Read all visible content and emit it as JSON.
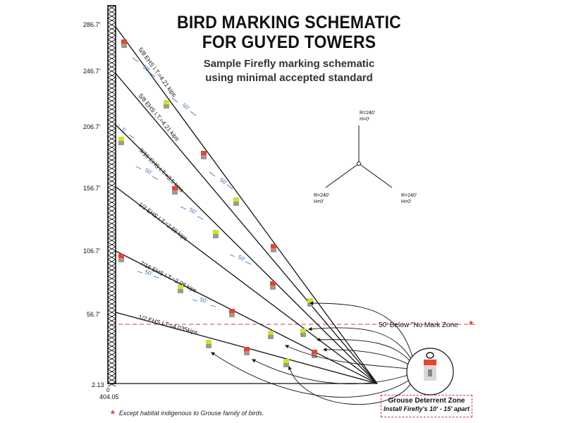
{
  "title_line1": "BIRD MARKING SCHEMATIC",
  "title_line2": "FOR GUYED TOWERS",
  "subtitle_line1": "Sample Firefly marking schematic",
  "subtitle_line2": "using minimal accepted standard",
  "height_labels": [
    "286.7'",
    "246.7'",
    "206.7'",
    "156.7'",
    "106.7'",
    "56.7'",
    "2.13"
  ],
  "base_label": "404.05",
  "base_marker": "0",
  "guy_wires": [
    {
      "label": "5/8 EHS  I.T.=4.21 kips"
    },
    {
      "label": "5/8 EHS  I.T.=4.21 kips"
    },
    {
      "label": "9/16 EHS  I.T.=3.5 kips"
    },
    {
      "label": "1/2 EHS  I.T.=2.69 kips"
    },
    {
      "label": "7/16 EHS  I.T.=2.08 kips"
    },
    {
      "label": "1/2 EHS  I.T.=4.035kips"
    }
  ],
  "spacing_labels": [
    "50'",
    "50'",
    "50'",
    "50'",
    "50'",
    "50'",
    "50'",
    "50'",
    "50'",
    "5'",
    "50'"
  ],
  "plan_labels": {
    "top": [
      "R=240'",
      "H=0'"
    ],
    "left": [
      "R=240'",
      "H=0'"
    ],
    "right": [
      "R=240'",
      "H=0'"
    ]
  },
  "no_mark_zone_label": "50' Below \"No Mark Zone",
  "footnote_star": "*",
  "footnote": "Except habitat indigenous to Grouse family of birds.",
  "grouse_zone_title": "Grouse Deterrent Zone",
  "grouse_zone_sub": "Install Firefly's 10' - 15' apart",
  "colors": {
    "marker_red": "#e8452c",
    "marker_yellow": "#d4e02a",
    "marker_gray": "#9a9a9a",
    "spacing_blue": "#3a6fb3",
    "zone_red": "#d23b3b"
  }
}
